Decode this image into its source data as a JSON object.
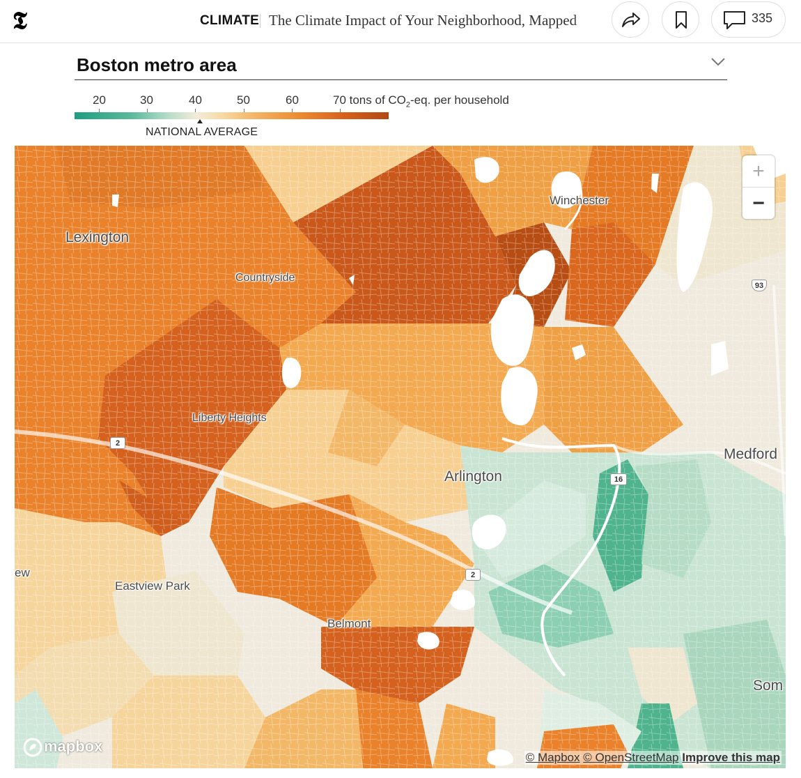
{
  "header": {
    "section": "CLIMATE",
    "headline": "The Climate Impact of Your Neighborhood, Mapped",
    "comment_count": "335"
  },
  "selector": {
    "label": "Boston metro area"
  },
  "legend": {
    "ticks": [
      "20",
      "30",
      "40",
      "50",
      "60"
    ],
    "last_tick": "70 tons of CO",
    "last_tick_sub": "2",
    "last_tick_rest": "-eq. per household",
    "national_average_label": "NATIONAL AVERAGE"
  },
  "map": {
    "places": {
      "lexington": "Lexington",
      "countryside": "Countryside",
      "winchester": "Winchester",
      "liberty_heights": "Liberty Heights",
      "arlington": "Arlington",
      "medford": "Medford",
      "eastview_park": "Eastview Park",
      "belmont": "Belmont",
      "somerville_partial": "Som",
      "edge_partial": "ew"
    },
    "route_shields": {
      "route_2_west": "2",
      "route_2_east": "2",
      "route_16": "16",
      "i93": "93"
    },
    "zoom_in": "+",
    "zoom_out": "−",
    "logo": "mapbox",
    "attribution": {
      "mapbox": "© Mapbox",
      "osm": "© OpenStreetMap",
      "improve": "Improve this map"
    }
  },
  "colors": {
    "dark_orange": "#c9581a",
    "orange": "#e9822a",
    "light_orange": "#f3a94f",
    "tan": "#f6cf91",
    "cream": "#efe6cf",
    "light_green": "#c6e3d2",
    "green": "#71c2a2",
    "dark_green": "#3daa82"
  }
}
